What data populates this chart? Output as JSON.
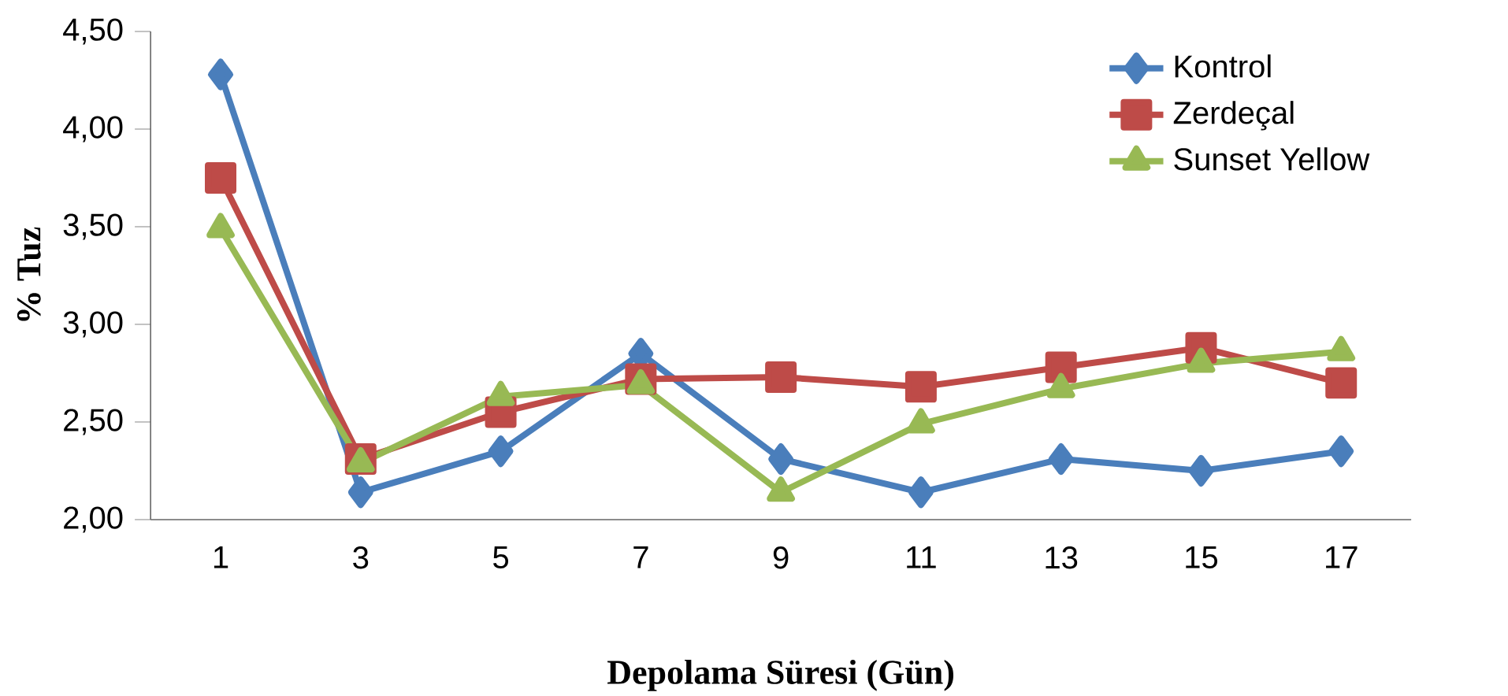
{
  "chart_data": {
    "type": "line",
    "xlabel": "Depolama Süresi (Gün)",
    "ylabel": "% Tuz",
    "categories": [
      "1",
      "3",
      "5",
      "7",
      "9",
      "11",
      "13",
      "15",
      "17"
    ],
    "ylim": [
      2,
      4.5
    ],
    "yticks": [
      {
        "value": 2,
        "label": "2,00"
      },
      {
        "value": 2.5,
        "label": "2,50"
      },
      {
        "value": 3,
        "label": "3,00"
      },
      {
        "value": 3.5,
        "label": "3,50"
      },
      {
        "value": 4,
        "label": "4,00"
      },
      {
        "value": 4.5,
        "label": "4,50"
      }
    ],
    "grid": false,
    "legend": "top right",
    "line_style": "solid",
    "series": [
      {
        "name": "Kontrol",
        "color": "#4a7ebb",
        "marker": "diamond",
        "values": [
          4.28,
          2.14,
          2.35,
          2.85,
          2.31,
          2.14,
          2.31,
          2.25,
          2.35
        ]
      },
      {
        "name": "Zerdeçal",
        "color": "#be4b48",
        "marker": "square",
        "values": [
          3.75,
          2.31,
          2.55,
          2.72,
          2.73,
          2.68,
          2.78,
          2.88,
          2.7
        ]
      },
      {
        "name": "Sunset Yellow",
        "color": "#98b954",
        "marker": "triangle",
        "values": [
          3.49,
          2.29,
          2.63,
          2.69,
          2.14,
          2.49,
          2.67,
          2.8,
          2.86
        ]
      }
    ]
  }
}
